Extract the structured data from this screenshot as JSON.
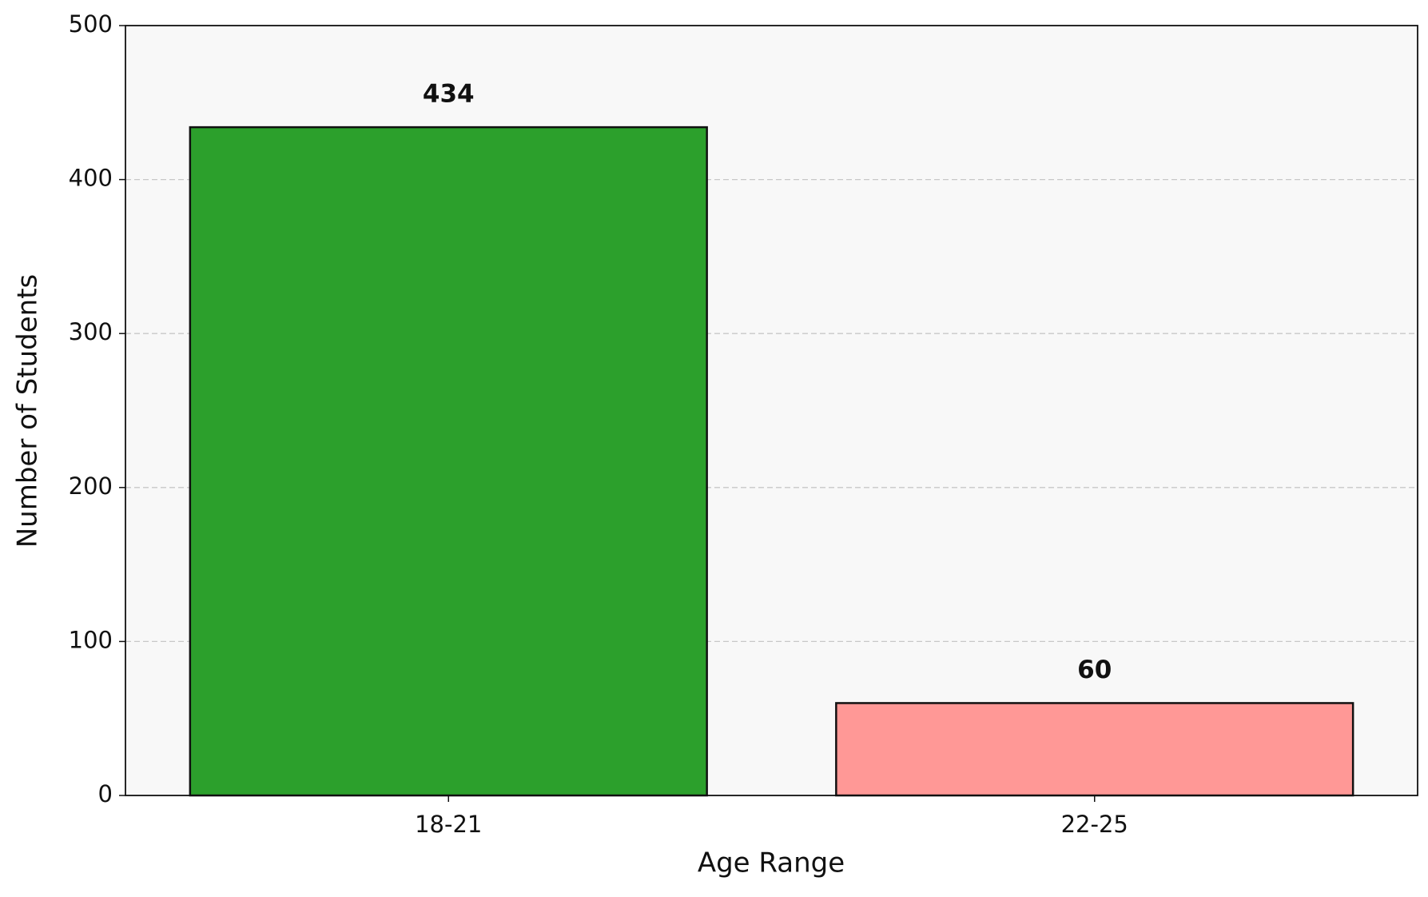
{
  "chart_data": {
    "type": "bar",
    "x_label": "Age Range",
    "y_label": "Number of Students",
    "categories": [
      "18-21",
      "22-25"
    ],
    "values": [
      434,
      60
    ],
    "colors": [
      "#2ca02c",
      "#ff9896"
    ],
    "ylim": [
      0,
      500
    ],
    "yticks": [
      0,
      100,
      200,
      300,
      400,
      500
    ],
    "grid": true
  }
}
